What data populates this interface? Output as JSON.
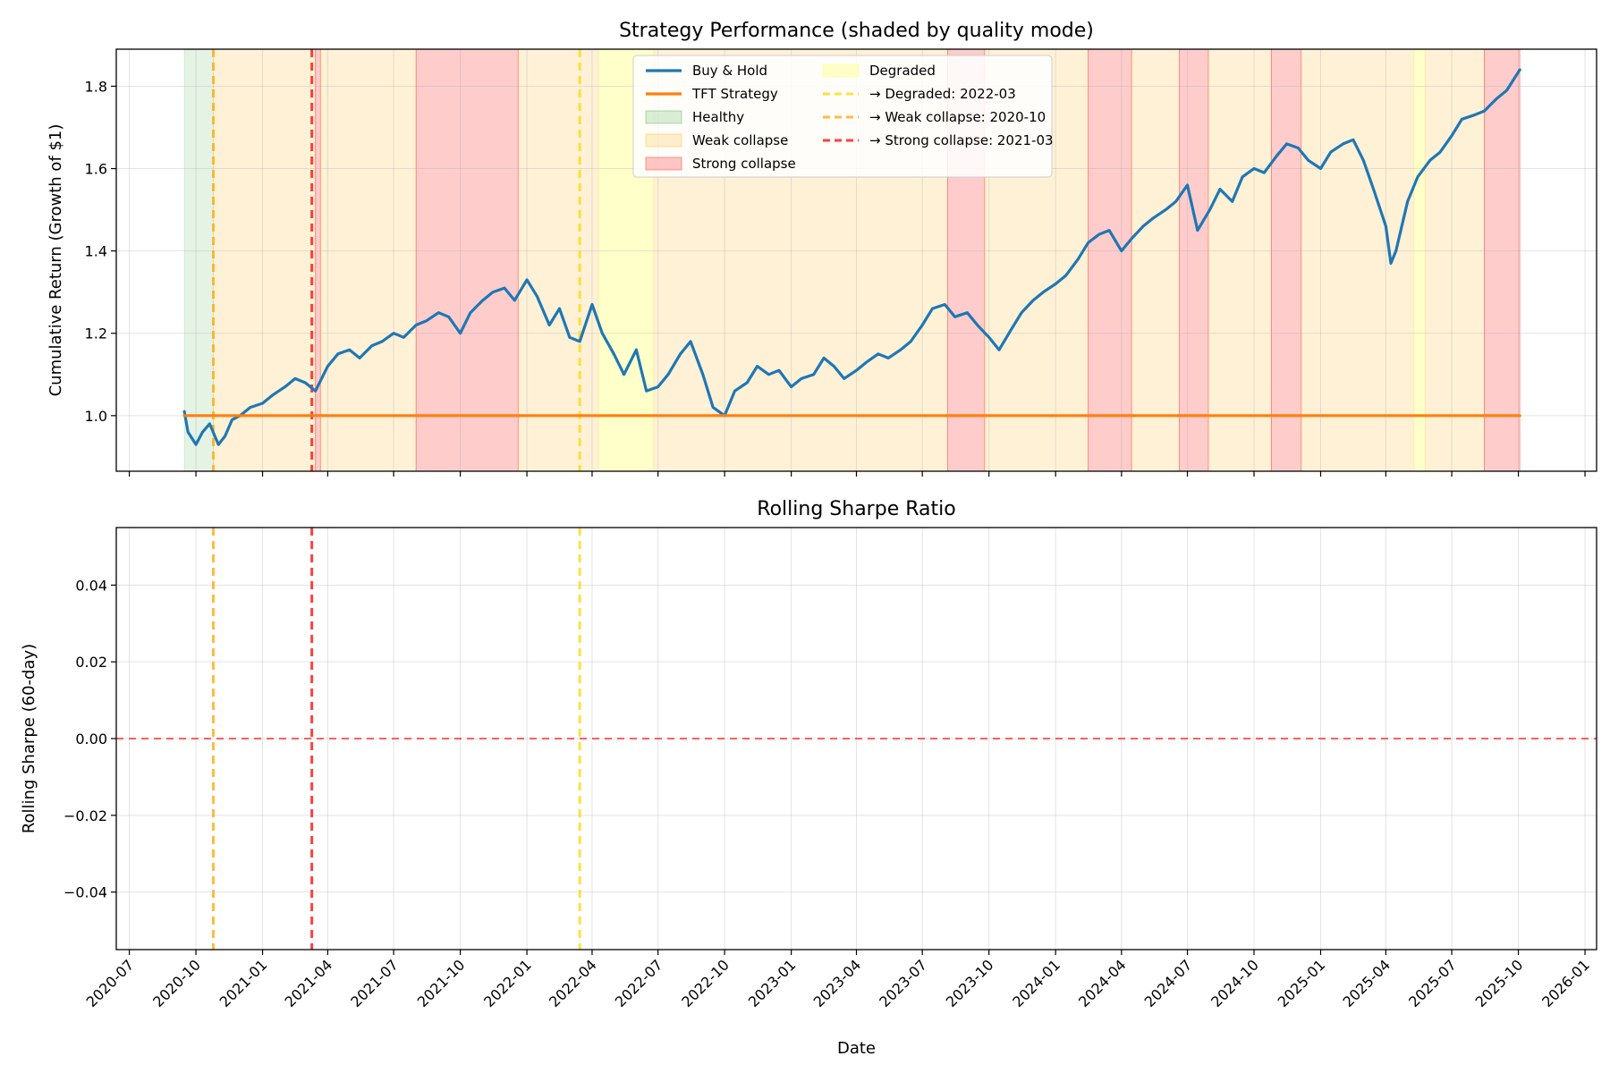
{
  "colors": {
    "buy_hold": "#1f77b4",
    "tft": "#ff7f0e",
    "healthy": "#2ca02c",
    "weak": "#ffa500",
    "strong": "#ff0000",
    "degraded": "#ffff66",
    "vline_degraded": "#ffd700",
    "vline_weak": "#ffa500",
    "vline_strong": "#ff0000",
    "zero_line": "#ff0000"
  },
  "chart_data": [
    {
      "type": "line",
      "title": "Strategy Performance (shaded by quality mode)",
      "xlabel": "",
      "ylabel": "Cumulative Return (Growth of $1)",
      "xlim": [
        "2020-06-13",
        "2026-01-17"
      ],
      "ylim": [
        0.865,
        1.89
      ],
      "yticks": [
        1.0,
        1.2,
        1.4,
        1.6,
        1.8
      ],
      "xticks": [
        "2020-07",
        "2020-10",
        "2021-01",
        "2021-04",
        "2021-07",
        "2021-10",
        "2022-01",
        "2022-04",
        "2022-07",
        "2022-10",
        "2023-01",
        "2023-04",
        "2023-07",
        "2023-10",
        "2024-01",
        "2024-04",
        "2024-07",
        "2024-10",
        "2025-01",
        "2025-04",
        "2025-07",
        "2025-10",
        "2026-01"
      ],
      "grid": true,
      "legend_position": "top-center",
      "legend": [
        {
          "label": "Buy & Hold",
          "kind": "line",
          "color_key": "buy_hold"
        },
        {
          "label": "TFT Strategy",
          "kind": "line",
          "color_key": "tft"
        },
        {
          "label": "Healthy",
          "kind": "patch",
          "color_key": "healthy"
        },
        {
          "label": "Weak collapse",
          "kind": "patch",
          "color_key": "weak"
        },
        {
          "label": "Strong collapse",
          "kind": "patch",
          "color_key": "strong"
        },
        {
          "label": "Degraded",
          "kind": "patch",
          "color_key": "degraded"
        },
        {
          "label": "→ Degraded: 2022-03",
          "kind": "dash",
          "color_key": "vline_degraded"
        },
        {
          "label": "→ Weak collapse: 2020-10",
          "kind": "dash",
          "color_key": "vline_weak"
        },
        {
          "label": "→ Strong collapse: 2021-03",
          "kind": "dash",
          "color_key": "vline_strong"
        }
      ],
      "regimes": [
        {
          "mode": "healthy",
          "start": "2020-09-15",
          "end": "2020-10-25"
        },
        {
          "mode": "weak",
          "start": "2020-10-25",
          "end": "2021-03-15"
        },
        {
          "mode": "strong",
          "start": "2021-03-15",
          "end": "2021-03-22"
        },
        {
          "mode": "weak",
          "start": "2021-03-22",
          "end": "2021-08-01"
        },
        {
          "mode": "strong",
          "start": "2021-08-01",
          "end": "2021-12-20"
        },
        {
          "mode": "weak",
          "start": "2021-12-20",
          "end": "2022-04-10"
        },
        {
          "mode": "degraded",
          "start": "2022-04-10",
          "end": "2022-06-25"
        },
        {
          "mode": "weak",
          "start": "2022-06-25",
          "end": "2023-08-05"
        },
        {
          "mode": "strong",
          "start": "2023-08-05",
          "end": "2023-09-25"
        },
        {
          "mode": "weak",
          "start": "2023-09-25",
          "end": "2024-02-15"
        },
        {
          "mode": "strong",
          "start": "2024-02-15",
          "end": "2024-04-15"
        },
        {
          "mode": "weak",
          "start": "2024-04-15",
          "end": "2024-06-20"
        },
        {
          "mode": "strong",
          "start": "2024-06-20",
          "end": "2024-07-30"
        },
        {
          "mode": "weak",
          "start": "2024-07-30",
          "end": "2024-10-25"
        },
        {
          "mode": "strong",
          "start": "2024-10-25",
          "end": "2024-12-05"
        },
        {
          "mode": "weak",
          "start": "2024-12-05",
          "end": "2025-05-10"
        },
        {
          "mode": "degraded",
          "start": "2025-05-10",
          "end": "2025-05-25"
        },
        {
          "mode": "weak",
          "start": "2025-05-25",
          "end": "2025-08-15"
        },
        {
          "mode": "strong",
          "start": "2025-08-15",
          "end": "2025-10-03"
        }
      ],
      "transitions": [
        {
          "label": "→ Weak collapse: 2020-10",
          "date": "2020-10-25",
          "color_key": "vline_weak"
        },
        {
          "label": "→ Strong collapse: 2021-03",
          "date": "2021-03-10",
          "color_key": "vline_strong"
        },
        {
          "label": "→ Degraded: 2022-03",
          "date": "2022-03-15",
          "color_key": "vline_degraded"
        }
      ],
      "series": [
        {
          "name": "Buy & Hold",
          "color_key": "buy_hold",
          "x": [
            "2020-09-15",
            "2020-09-20",
            "2020-10-01",
            "2020-10-10",
            "2020-10-20",
            "2020-11-01",
            "2020-11-10",
            "2020-11-20",
            "2020-12-01",
            "2020-12-15",
            "2021-01-01",
            "2021-01-15",
            "2021-02-01",
            "2021-02-15",
            "2021-03-01",
            "2021-03-15",
            "2021-04-01",
            "2021-04-15",
            "2021-05-01",
            "2021-05-15",
            "2021-06-01",
            "2021-06-15",
            "2021-07-01",
            "2021-07-15",
            "2021-08-01",
            "2021-08-15",
            "2021-09-01",
            "2021-09-15",
            "2021-10-01",
            "2021-10-15",
            "2021-11-01",
            "2021-11-15",
            "2021-12-01",
            "2021-12-15",
            "2022-01-01",
            "2022-01-15",
            "2022-02-01",
            "2022-02-15",
            "2022-03-01",
            "2022-03-15",
            "2022-04-01",
            "2022-04-15",
            "2022-05-01",
            "2022-05-15",
            "2022-06-01",
            "2022-06-15",
            "2022-07-01",
            "2022-07-15",
            "2022-08-01",
            "2022-08-15",
            "2022-09-01",
            "2022-09-15",
            "2022-10-01",
            "2022-10-15",
            "2022-11-01",
            "2022-11-15",
            "2022-12-01",
            "2022-12-15",
            "2023-01-01",
            "2023-01-15",
            "2023-02-01",
            "2023-02-15",
            "2023-03-01",
            "2023-03-15",
            "2023-04-01",
            "2023-04-15",
            "2023-05-01",
            "2023-05-15",
            "2023-06-01",
            "2023-06-15",
            "2023-07-01",
            "2023-07-15",
            "2023-08-01",
            "2023-08-15",
            "2023-09-01",
            "2023-09-15",
            "2023-10-01",
            "2023-10-15",
            "2023-11-01",
            "2023-11-15",
            "2023-12-01",
            "2023-12-15",
            "2024-01-01",
            "2024-01-15",
            "2024-02-01",
            "2024-02-15",
            "2024-03-01",
            "2024-03-15",
            "2024-04-01",
            "2024-04-15",
            "2024-05-01",
            "2024-05-15",
            "2024-06-01",
            "2024-06-15",
            "2024-07-01",
            "2024-07-15",
            "2024-08-01",
            "2024-08-15",
            "2024-09-01",
            "2024-09-15",
            "2024-10-01",
            "2024-10-15",
            "2024-11-01",
            "2024-11-15",
            "2024-12-01",
            "2024-12-15",
            "2025-01-01",
            "2025-01-15",
            "2025-02-01",
            "2025-02-15",
            "2025-03-01",
            "2025-03-15",
            "2025-04-01",
            "2025-04-08",
            "2025-04-15",
            "2025-05-01",
            "2025-05-15",
            "2025-06-01",
            "2025-06-15",
            "2025-07-01",
            "2025-07-15",
            "2025-08-01",
            "2025-08-15",
            "2025-09-01",
            "2025-09-15",
            "2025-10-03"
          ],
          "y": [
            1.01,
            0.96,
            0.93,
            0.96,
            0.98,
            0.93,
            0.95,
            0.99,
            1.0,
            1.02,
            1.03,
            1.05,
            1.07,
            1.09,
            1.08,
            1.06,
            1.12,
            1.15,
            1.16,
            1.14,
            1.17,
            1.18,
            1.2,
            1.19,
            1.22,
            1.23,
            1.25,
            1.24,
            1.2,
            1.25,
            1.28,
            1.3,
            1.31,
            1.28,
            1.33,
            1.29,
            1.22,
            1.26,
            1.19,
            1.18,
            1.27,
            1.2,
            1.15,
            1.1,
            1.16,
            1.06,
            1.07,
            1.1,
            1.15,
            1.18,
            1.1,
            1.02,
            1.0,
            1.06,
            1.08,
            1.12,
            1.1,
            1.11,
            1.07,
            1.09,
            1.1,
            1.14,
            1.12,
            1.09,
            1.11,
            1.13,
            1.15,
            1.14,
            1.16,
            1.18,
            1.22,
            1.26,
            1.27,
            1.24,
            1.25,
            1.22,
            1.19,
            1.16,
            1.21,
            1.25,
            1.28,
            1.3,
            1.32,
            1.34,
            1.38,
            1.42,
            1.44,
            1.45,
            1.4,
            1.43,
            1.46,
            1.48,
            1.5,
            1.52,
            1.56,
            1.45,
            1.5,
            1.55,
            1.52,
            1.58,
            1.6,
            1.59,
            1.63,
            1.66,
            1.65,
            1.62,
            1.6,
            1.64,
            1.66,
            1.67,
            1.62,
            1.55,
            1.46,
            1.37,
            1.4,
            1.52,
            1.58,
            1.62,
            1.64,
            1.68,
            1.72,
            1.73,
            1.74,
            1.77,
            1.79,
            1.84
          ]
        },
        {
          "name": "TFT Strategy",
          "color_key": "tft",
          "x": [
            "2020-09-15",
            "2025-10-03"
          ],
          "y": [
            1.0,
            1.0
          ]
        }
      ]
    },
    {
      "type": "line",
      "title": "Rolling Sharpe Ratio",
      "xlabel": "Date",
      "ylabel": "Rolling Sharpe (60-day)",
      "xlim": [
        "2020-06-13",
        "2026-01-17"
      ],
      "ylim": [
        -0.055,
        0.055
      ],
      "yticks": [
        -0.04,
        -0.02,
        0.0,
        0.02,
        0.04
      ],
      "ytick_labels": [
        "−0.04",
        "−0.02",
        "0.00",
        "0.02",
        "0.04"
      ],
      "xticks": [
        "2020-07",
        "2020-10",
        "2021-01",
        "2021-04",
        "2021-07",
        "2021-10",
        "2022-01",
        "2022-04",
        "2022-07",
        "2022-10",
        "2023-01",
        "2023-04",
        "2023-07",
        "2023-10",
        "2024-01",
        "2024-04",
        "2024-07",
        "2024-10",
        "2025-01",
        "2025-04",
        "2025-07",
        "2025-10",
        "2026-01"
      ],
      "grid": true,
      "reference_line": 0.0,
      "transitions": [
        {
          "date": "2020-10-25",
          "color_key": "vline_weak"
        },
        {
          "date": "2021-03-10",
          "color_key": "vline_strong"
        },
        {
          "date": "2022-03-15",
          "color_key": "vline_degraded"
        }
      ]
    }
  ]
}
